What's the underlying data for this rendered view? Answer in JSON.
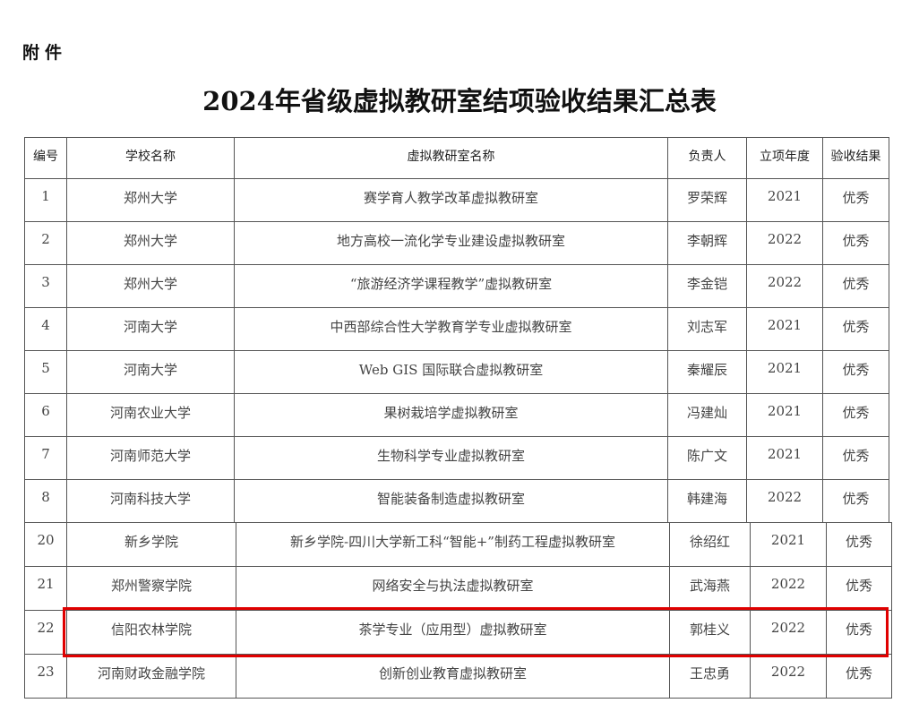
{
  "attachment_label": "附件",
  "title": "2024年省级虚拟教研室结项验收结果汇总表",
  "table": {
    "headers": [
      "编号",
      "学校名称",
      "虚拟教研室名称",
      "负责人",
      "立项年度",
      "验收结果"
    ],
    "rows_part1": [
      [
        "1",
        "郑州大学",
        "赛学育人教学改革虚拟教研室",
        "罗荣辉",
        "2021",
        "优秀"
      ],
      [
        "2",
        "郑州大学",
        "地方高校一流化学专业建设虚拟教研室",
        "李朝辉",
        "2022",
        "优秀"
      ],
      [
        "3",
        "郑州大学",
        "“旅游经济学课程教学”虚拟教研室",
        "李金铠",
        "2022",
        "优秀"
      ],
      [
        "4",
        "河南大学",
        "中西部综合性大学教育学专业虚拟教研室",
        "刘志军",
        "2021",
        "优秀"
      ],
      [
        "5",
        "河南大学",
        "Web GIS 国际联合虚拟教研室",
        "秦耀辰",
        "2021",
        "优秀"
      ],
      [
        "6",
        "河南农业大学",
        "果树栽培学虚拟教研室",
        "冯建灿",
        "2021",
        "优秀"
      ],
      [
        "7",
        "河南师范大学",
        "生物科学专业虚拟教研室",
        "陈广文",
        "2021",
        "优秀"
      ],
      [
        "8",
        "河南科技大学",
        "智能装备制造虚拟教研室",
        "韩建海",
        "2022",
        "优秀"
      ]
    ],
    "rows_part2": [
      [
        "20",
        "新乡学院",
        "新乡学院-四川大学新工科“智能+”制药工程虚拟教研室",
        "徐绍红",
        "2021",
        "优秀"
      ],
      [
        "21",
        "郑州警察学院",
        "网络安全与执法虚拟教研室",
        "武海燕",
        "2022",
        "优秀"
      ],
      [
        "22",
        "信阳农林学院",
        "茶学专业（应用型）虚拟教研室",
        "郭桂义",
        "2022",
        "优秀"
      ],
      [
        "23",
        "河南财政金融学院",
        "创新创业教育虚拟教研室",
        "王忠勇",
        "2022",
        "优秀"
      ]
    ]
  },
  "highlight": {
    "row_number": "22",
    "color": "#e00000"
  }
}
